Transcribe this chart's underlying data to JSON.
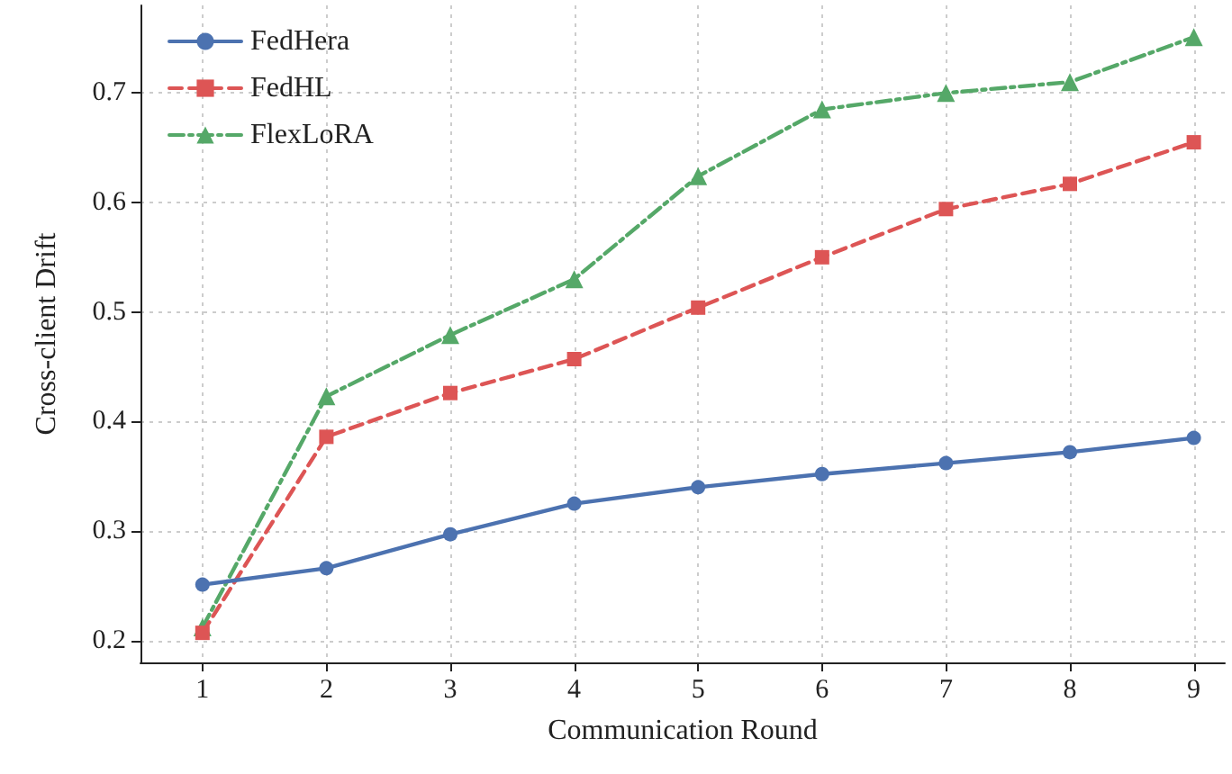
{
  "chart_data": {
    "type": "line",
    "xlabel": "Communication Round",
    "ylabel": "Cross-client Drift",
    "x": [
      1,
      2,
      3,
      4,
      5,
      6,
      7,
      8,
      9
    ],
    "series": [
      {
        "name": "FedHera",
        "color": "#4c72b0",
        "marker": "circle",
        "line_style": "solid",
        "values": [
          0.251,
          0.266,
          0.297,
          0.325,
          0.34,
          0.352,
          0.362,
          0.372,
          0.385
        ]
      },
      {
        "name": "FedHL",
        "color": "#dd5555",
        "marker": "square",
        "line_style": "dashed",
        "values": [
          0.207,
          0.386,
          0.426,
          0.457,
          0.504,
          0.55,
          0.594,
          0.617,
          0.655
        ]
      },
      {
        "name": "FlexLoRA",
        "color": "#55a868",
        "marker": "triangle",
        "line_style": "dashdot",
        "values": [
          0.212,
          0.423,
          0.479,
          0.53,
          0.624,
          0.685,
          0.7,
          0.71,
          0.751
        ]
      }
    ],
    "xlim": [
      0.5,
      9.25
    ],
    "xticks": [
      1,
      2,
      3,
      4,
      5,
      6,
      7,
      8,
      9
    ],
    "ylim": [
      0.18,
      0.78
    ],
    "yticks": [
      0.2,
      0.3,
      0.4,
      0.5,
      0.6,
      0.7
    ],
    "grid": true,
    "legend": "top left"
  }
}
